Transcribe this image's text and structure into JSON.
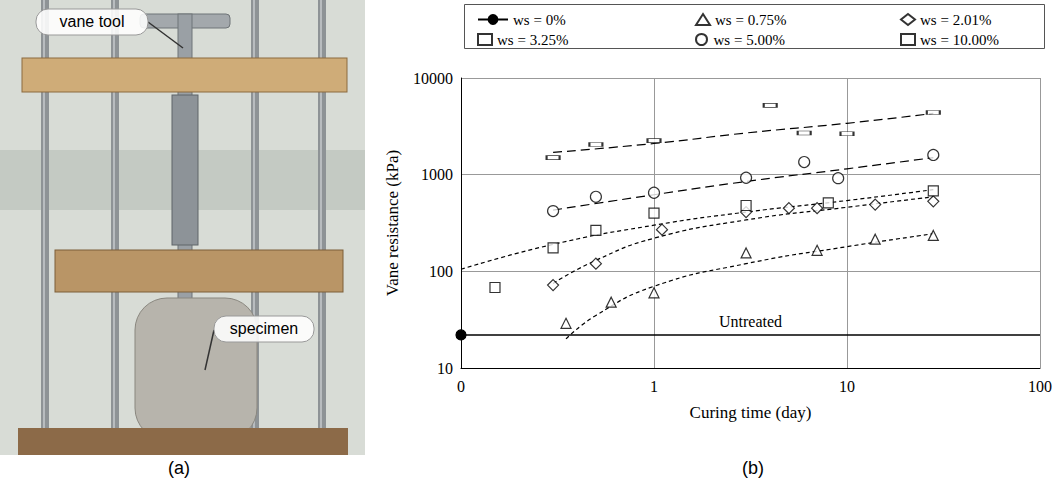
{
  "figure": {
    "panel_a": {
      "letter": "(a)",
      "labels": [
        "vane tool",
        "specimen"
      ]
    },
    "panel_b_letter": "(b)"
  },
  "chart_data": {
    "type": "scatter",
    "x_label": "Curing time (day)",
    "y_label": "Vane resistance (kPa)",
    "log": true,
    "grid": true,
    "legend": "top",
    "xlim": [
      0.1,
      100
    ],
    "xticks": [
      {
        "value": 0.1,
        "label": "0"
      },
      1,
      10,
      100
    ],
    "ylim": [
      10,
      10000
    ],
    "yticks": [
      10,
      100,
      1000,
      10000
    ],
    "reference_line": {
      "label": "Untreated",
      "value": 22,
      "color": "#000000"
    },
    "series": [
      {
        "name": "ws = 0%",
        "type": "line",
        "marker": "dot",
        "color": "#000000",
        "x": [
          0.1
        ],
        "values": [
          22
        ]
      },
      {
        "name": "ws = 0.75%",
        "marker": "triangle",
        "color": "#000000",
        "x": [
          0.35,
          0.6,
          1,
          3,
          7,
          14,
          28
        ],
        "values": [
          29,
          48,
          60,
          155,
          165,
          215,
          235
        ],
        "fit_x": [
          0.35,
          0.5,
          1,
          3,
          10,
          28
        ],
        "fit_values": [
          20,
          35,
          70,
          120,
          180,
          245
        ],
        "line_style": "dotted"
      },
      {
        "name": "ws = 2.01%",
        "marker": "diamond",
        "color": "#000000",
        "x": [
          0.3,
          0.5,
          1.1,
          3,
          5,
          7,
          14,
          28
        ],
        "values": [
          72,
          120,
          270,
          410,
          450,
          450,
          490,
          530
        ],
        "fit_x": [
          0.3,
          0.5,
          1,
          3,
          10,
          28
        ],
        "fit_values": [
          75,
          130,
          220,
          340,
          460,
          590
        ],
        "line_style": "dotted"
      },
      {
        "name": "ws = 3.25%",
        "marker": "square",
        "color": "#000000",
        "x": [
          0.15,
          0.3,
          0.5,
          1,
          3,
          8,
          28
        ],
        "values": [
          68,
          175,
          265,
          400,
          480,
          510,
          680
        ],
        "fit_x": [
          0.1,
          0.3,
          1,
          3,
          10,
          28
        ],
        "fit_values": [
          105,
          190,
          300,
          410,
          540,
          700
        ],
        "line_style": "dotted"
      },
      {
        "name": "ws = 5.00%",
        "marker": "circle",
        "color": "#000000",
        "x": [
          0.3,
          0.5,
          1,
          3,
          6,
          9,
          28
        ],
        "values": [
          420,
          590,
          650,
          930,
          1350,
          920,
          1600
        ],
        "fit_x": [
          0.3,
          1,
          3,
          10,
          28
        ],
        "fit_values": [
          430,
          620,
          850,
          1150,
          1500
        ],
        "line_style": "dashed"
      },
      {
        "name": "ws = 10.00%",
        "marker": "dash",
        "color": "#000000",
        "x": [
          0.3,
          0.5,
          1,
          4,
          6,
          10,
          28
        ],
        "values": [
          1500,
          2050,
          2250,
          5200,
          2700,
          2650,
          4400
        ],
        "fit_x": [
          0.3,
          1,
          3,
          10,
          28
        ],
        "fit_values": [
          1700,
          2100,
          2700,
          3400,
          4300
        ],
        "line_style": "dashed"
      }
    ]
  }
}
